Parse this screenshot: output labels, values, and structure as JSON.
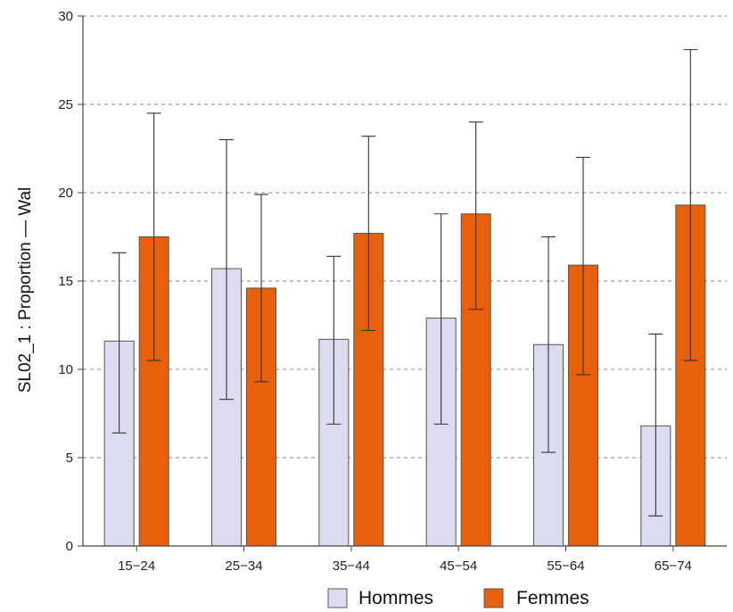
{
  "chart_data": {
    "type": "bar",
    "title": "",
    "xlabel": "",
    "ylabel": "SL02_1 : Proportion  —  Wal",
    "ylim": [
      0,
      30
    ],
    "yticks": [
      0,
      5,
      10,
      15,
      20,
      25,
      30
    ],
    "grid": true,
    "legend_position": "bottom",
    "categories": [
      "15−24",
      "25−34",
      "35−44",
      "45−54",
      "55−64",
      "65−74"
    ],
    "series": [
      {
        "name": "Hommes",
        "color": "#dcdcf0",
        "values": [
          11.6,
          15.7,
          11.7,
          12.9,
          11.4,
          6.8
        ],
        "error_low": [
          6.4,
          8.3,
          6.9,
          6.9,
          5.3,
          1.7
        ],
        "error_high": [
          16.6,
          23.0,
          16.4,
          18.8,
          17.5,
          12.0
        ]
      },
      {
        "name": "Femmes",
        "color": "#e8600c",
        "values": [
          17.5,
          14.6,
          17.7,
          18.8,
          15.9,
          19.3
        ],
        "error_low": [
          10.5,
          9.3,
          12.2,
          13.4,
          9.7,
          10.5
        ],
        "error_high": [
          24.5,
          19.9,
          23.2,
          24.0,
          22.0,
          28.1
        ]
      }
    ]
  }
}
